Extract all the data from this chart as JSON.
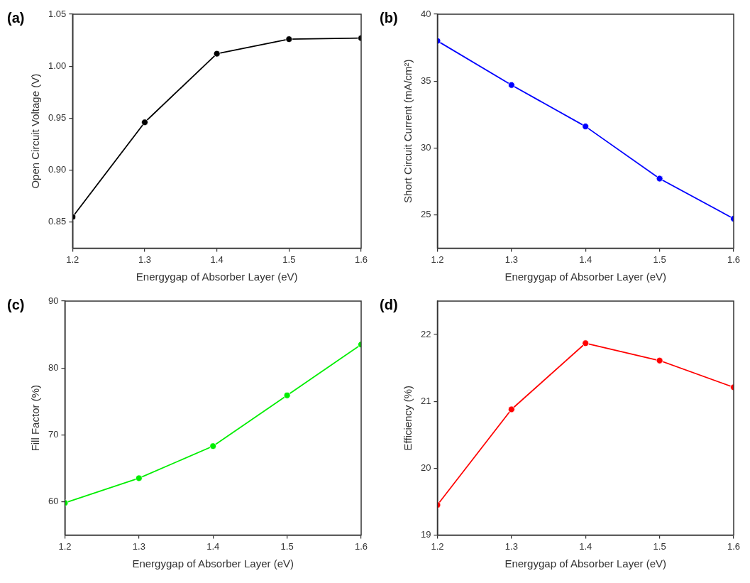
{
  "chart_data": [
    {
      "type": "line",
      "title": "(a)",
      "xlabel": "Energygap of Absorber Layer (eV)",
      "ylabel": "Open Circuit Voltage (V)",
      "x": [
        1.2,
        1.3,
        1.4,
        1.5,
        1.6
      ],
      "xlim": [
        1.2,
        1.6
      ],
      "xticks": [
        1.2,
        1.3,
        1.4,
        1.5,
        1.6
      ],
      "ylim": [
        0.825,
        1.05
      ],
      "yticks": [
        0.85,
        {
          "value": 0.9,
          "label": "0.90"
        },
        0.95,
        {
          "value": 1,
          "label": "1.00"
        },
        1.05
      ],
      "marker": "circle",
      "line_style": "solid",
      "series": [
        {
          "color": "#000000",
          "values": [
            0.855,
            0.946,
            1.012,
            1.026,
            1.027
          ]
        }
      ]
    },
    {
      "type": "line",
      "title": "(b)",
      "xlabel": "Energygap of Absorber Layer (eV)",
      "ylabel": "Short Circuit Current (mA/cm²)",
      "x": [
        1.2,
        1.3,
        1.4,
        1.5,
        1.6
      ],
      "xlim": [
        1.2,
        1.6
      ],
      "xticks": [
        1.2,
        1.3,
        1.4,
        1.5,
        1.6
      ],
      "ylim": [
        22.5,
        40
      ],
      "yticks": [
        25,
        30,
        35,
        40
      ],
      "marker": "circle",
      "line_style": "solid",
      "series": [
        {
          "color": "#0000ff",
          "values": [
            38.0,
            34.7,
            31.6,
            27.7,
            24.7
          ]
        }
      ]
    },
    {
      "type": "line",
      "title": "(c)",
      "xlabel": "Energygap of Absorber Layer (eV)",
      "ylabel": "Fill Factor (%)",
      "x": [
        1.2,
        1.3,
        1.4,
        1.5,
        1.6
      ],
      "xlim": [
        1.2,
        1.6
      ],
      "xticks": [
        1.2,
        1.3,
        1.4,
        1.5,
        1.6
      ],
      "ylim": [
        55,
        90
      ],
      "yticks": [
        60,
        70,
        80,
        90
      ],
      "marker": "circle",
      "line_style": "solid",
      "series": [
        {
          "color": "#00ee00",
          "values": [
            59.8,
            63.5,
            68.3,
            75.9,
            83.5
          ]
        }
      ]
    },
    {
      "type": "line",
      "title": "(d)",
      "xlabel": "Energygap of Absorber Layer (eV)",
      "ylabel": "Efficiency (%)",
      "x": [
        1.2,
        1.3,
        1.4,
        1.5,
        1.6
      ],
      "xlim": [
        1.2,
        1.6
      ],
      "xticks": [
        1.2,
        1.3,
        1.4,
        1.5,
        1.6
      ],
      "ylim": [
        19,
        22.5
      ],
      "yticks": [
        19,
        20,
        21,
        22
      ],
      "marker": "circle",
      "line_style": "solid",
      "series": [
        {
          "color": "#ff0000",
          "values": [
            19.45,
            20.88,
            21.87,
            21.61,
            21.21
          ]
        }
      ]
    }
  ]
}
